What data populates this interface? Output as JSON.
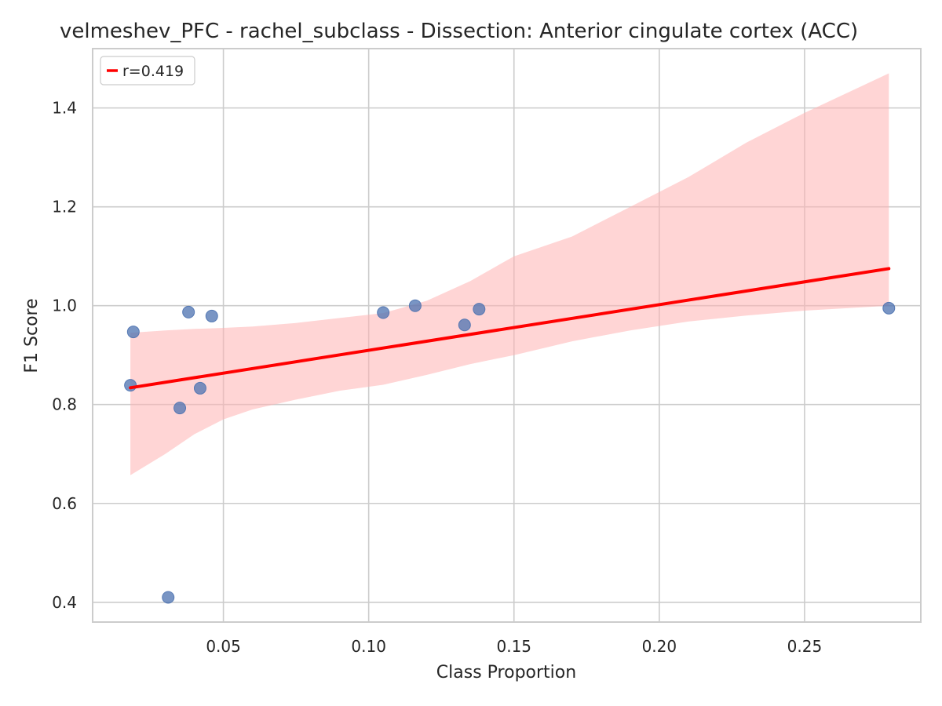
{
  "chart_data": {
    "type": "scatter",
    "title": "velmeshev_PFC - rachel_subclass - Dissection: Anterior cingulate cortex (ACC)",
    "xlabel": "Class Proportion",
    "ylabel": "F1 Score",
    "xlim": [
      0.005,
      0.29
    ],
    "ylim": [
      0.36,
      1.52
    ],
    "xticks": [
      0.05,
      0.1,
      0.15,
      0.2,
      0.25
    ],
    "xtick_labels": [
      "0.05",
      "0.10",
      "0.15",
      "0.20",
      "0.25"
    ],
    "yticks": [
      0.4,
      0.6,
      0.8,
      1.0,
      1.2,
      1.4
    ],
    "ytick_labels": [
      "0.4",
      "0.6",
      "0.8",
      "1.0",
      "1.2",
      "1.4"
    ],
    "grid": true,
    "legend": {
      "position": "top-left",
      "entries": [
        "r=0.419"
      ]
    },
    "points": [
      {
        "x": 0.018,
        "y": 0.839
      },
      {
        "x": 0.019,
        "y": 0.947
      },
      {
        "x": 0.031,
        "y": 0.41
      },
      {
        "x": 0.035,
        "y": 0.793
      },
      {
        "x": 0.038,
        "y": 0.987
      },
      {
        "x": 0.042,
        "y": 0.833
      },
      {
        "x": 0.046,
        "y": 0.979
      },
      {
        "x": 0.105,
        "y": 0.986
      },
      {
        "x": 0.116,
        "y": 1.0
      },
      {
        "x": 0.133,
        "y": 0.961
      },
      {
        "x": 0.138,
        "y": 0.993
      },
      {
        "x": 0.279,
        "y": 0.995
      }
    ],
    "regression": {
      "label": "r=0.419",
      "x": [
        0.018,
        0.279
      ],
      "y": [
        0.834,
        1.075
      ]
    },
    "confidence_band": {
      "x": [
        0.018,
        0.03,
        0.04,
        0.05,
        0.06,
        0.075,
        0.09,
        0.105,
        0.12,
        0.135,
        0.15,
        0.17,
        0.19,
        0.21,
        0.23,
        0.25,
        0.279
      ],
      "lower": [
        0.657,
        0.7,
        0.74,
        0.77,
        0.79,
        0.81,
        0.828,
        0.84,
        0.86,
        0.882,
        0.9,
        0.928,
        0.95,
        0.968,
        0.98,
        0.99,
        1.0
      ],
      "upper": [
        0.945,
        0.95,
        0.953,
        0.955,
        0.958,
        0.965,
        0.975,
        0.985,
        1.01,
        1.05,
        1.1,
        1.14,
        1.2,
        1.26,
        1.33,
        1.39,
        1.47
      ]
    },
    "colors": {
      "points": "#4c72b0",
      "regression": "#ff0000",
      "band": "#ffb3b3",
      "grid": "#cccccc",
      "axes": "#cccccc"
    }
  }
}
